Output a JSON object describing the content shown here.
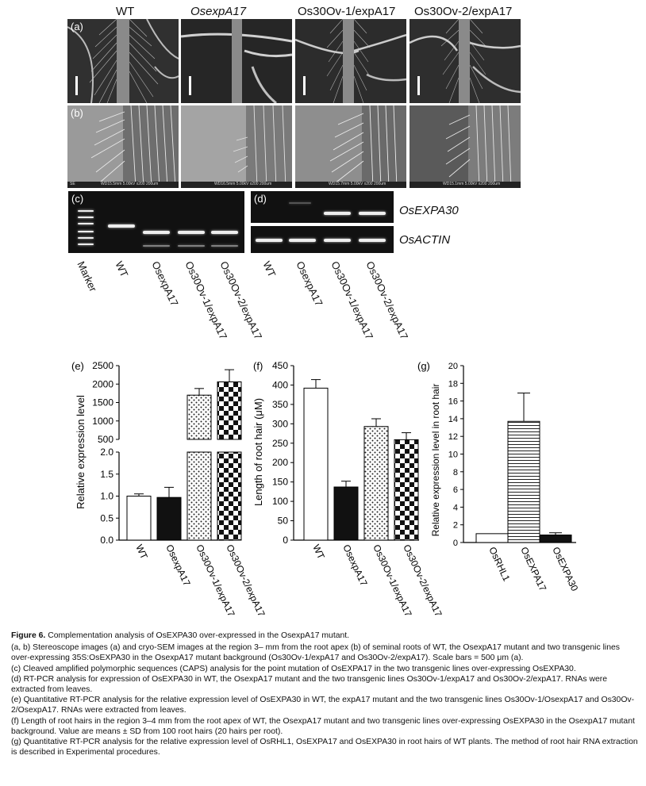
{
  "columns": [
    "WT",
    "OsexpA17",
    "Os30Ov-1/expA17",
    "Os30Ov-2/expA17"
  ],
  "panel_labels": {
    "a": "(a)",
    "b": "(b)",
    "c": "(c)",
    "d": "(d)",
    "e": "(e)",
    "f": "(f)",
    "g": "(g)"
  },
  "sem_info": [
    "WD15.5mm 5.00kV x200 200um",
    "WD16.5mm 5.00kV x200 200um",
    "WD15.7mm 5.00kV x200 200um",
    "WD15.1mm 5.00kV x200 200um"
  ],
  "sem_tag": "SE",
  "gel_c_lanes": [
    "Marker",
    "WT",
    "OsexpA17",
    "Os30Ov-1/expA17",
    "Os30Ov-2/expA17"
  ],
  "gel_d_lanes": [
    "WT",
    "OsexpA17",
    "Os30Ov-1/expA17",
    "Os30Ov-2/expA17"
  ],
  "gel_d_genes": [
    "OsEXPA30",
    "OsACTIN"
  ],
  "chart_data": [
    {
      "panel": "(e)",
      "type": "bar",
      "ylabel": "Relative expression level",
      "categories": [
        "WT",
        "OsexpA17",
        "Os30Ov-1/expA17",
        "Os30Ov-2/expA17"
      ],
      "values": [
        1.0,
        0.97,
        1700,
        2060
      ],
      "errors": [
        0.05,
        0.23,
        180,
        330
      ],
      "patterns": [
        "white",
        "black",
        "dots",
        "checker"
      ],
      "y_break": true,
      "lower_ylim": [
        0,
        2.0
      ],
      "lower_ticks": [
        "0.0",
        "0.5",
        "1.0",
        "1.5",
        "2.0"
      ],
      "upper_ylim": [
        500,
        2500
      ],
      "upper_ticks": [
        "500",
        "1000",
        "1500",
        "2000",
        "2500"
      ]
    },
    {
      "panel": "(f)",
      "type": "bar",
      "ylabel": "Length of root hair (μM)",
      "categories": [
        "WT",
        "OsexpA17",
        "Os30Ov-1/expA17",
        "Os30Ov-2/expA17"
      ],
      "values": [
        392,
        137,
        293,
        259
      ],
      "errors": [
        22,
        15,
        20,
        18
      ],
      "patterns": [
        "white",
        "black",
        "dots",
        "checker"
      ],
      "ylim": [
        0,
        450
      ],
      "ticks": [
        "0",
        "50",
        "100",
        "150",
        "200",
        "250",
        "300",
        "350",
        "400",
        "450"
      ]
    },
    {
      "panel": "(g)",
      "type": "bar",
      "ylabel": "Relative expression level in root hair",
      "categories": [
        "OsRHL1",
        "OsEXPA17",
        "OsEXPA30"
      ],
      "values": [
        1.0,
        13.7,
        0.85
      ],
      "errors": [
        0,
        3.2,
        0.25
      ],
      "patterns": [
        "white",
        "hlines",
        "black"
      ],
      "ylim": [
        0,
        20
      ],
      "ticks": [
        "0",
        "2",
        "4",
        "6",
        "8",
        "10",
        "12",
        "14",
        "16",
        "18",
        "20"
      ]
    }
  ],
  "caption": {
    "figure_label": "Figure 6.",
    "title": "Complementation analysis of OsEXPA30 over-expressed in the OsexpA17 mutant.",
    "lines": [
      "(a, b) Stereoscope images (a) and cryo-SEM images at the region 3– mm from the root apex (b) of seminal roots of WT, the OsexpA17 mutant and two transgenic lines over-expressing 35S:OsEXPA30 in the OsexpA17 mutant background (Os30Ov-1/expA17 and Os30Ov-2/expA17). Scale bars = 500 μm (a).",
      "(c) Cleaved amplified polymorphic sequences (CAPS) analysis for the point mutation of OsEXPA17 in the two transgenic lines over-expressing OsEXPA30.",
      "(d) RT-PCR analysis for expression of OsEXPA30 in WT, the OsexpA17 mutant and the two transgenic lines Os30Ov-1/expA17 and Os30Ov-2/expA17. RNAs were extracted from leaves.",
      "(e) Quantitative RT-PCR analysis for the relative expression level of OsEXPA30 in WT, the expA17 mutant and the two transgenic lines Os30Ov-1/OsexpA17 and Os30Ov-2/OsexpA17. RNAs were extracted from leaves.",
      "(f) Length of root hairs in the region 3–4 mm from the root apex of WT, the OsexpA17 mutant and two transgenic lines over-expressing OsEXPA30 in the OsexpA17 mutant background. Value are means ± SD from 100 root hairs (20 hairs per root).",
      "(g) Quantitative RT-PCR analysis for the relative expression level of OsRHL1, OsEXPA17 and OsEXPA30 in root hairs of WT plants. The method of root hair RNA extraction is described in Experimental procedures."
    ]
  }
}
